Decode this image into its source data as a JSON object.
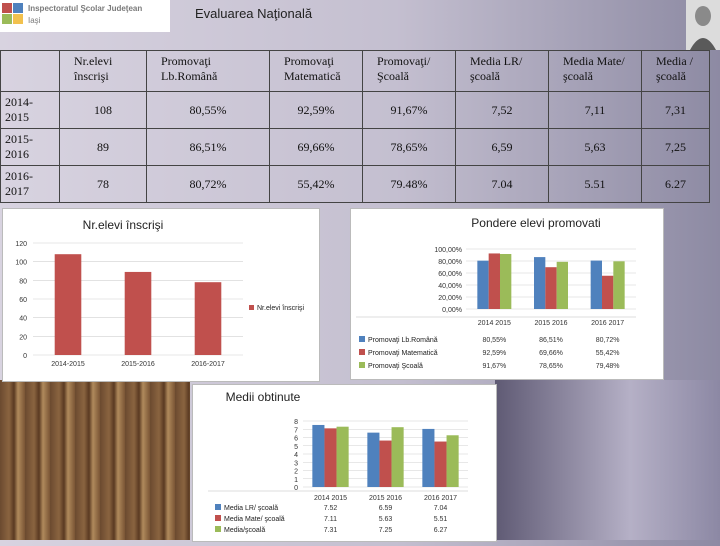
{
  "header": {
    "logo_line1": "Inspectoratul Şcolar Judeţean",
    "logo_line2": "Iaşi",
    "title": "Evaluarea Naţională"
  },
  "table": {
    "headers": [
      "",
      "Nr.elevi înscrişi",
      "Promovaţi Lb.Română",
      "Promovaţi Matematică",
      "Promovaţi/ Şcoală",
      "Media LR/ şcoală",
      "Media Mate/ şcoală",
      "Media /şcoală"
    ],
    "rows": [
      {
        "year": "2014-2015",
        "cells": [
          "108",
          "80,55%",
          "92,59%",
          "91,67%",
          "7,52",
          "7,11",
          "7,31"
        ]
      },
      {
        "year": "2015-2016",
        "cells": [
          "89",
          "86,51%",
          "69,66%",
          "78,65%",
          "6,59",
          "5,63",
          "7,25"
        ]
      },
      {
        "year": "2016-2017",
        "cells": [
          "78",
          "80,72%",
          "55,42%",
          "79.48%",
          "7.04",
          "5.51",
          "6.27"
        ]
      }
    ]
  },
  "colors": {
    "red": "#c0504d",
    "blue": "#4f81bd",
    "green": "#9bbb59"
  },
  "chart_data": [
    {
      "type": "bar",
      "title": "Nr.elevi înscrişi",
      "categories": [
        "2014-2015",
        "2015-2016",
        "2016-2017"
      ],
      "series": [
        {
          "name": "Nr.elevi înscrişi",
          "values": [
            108,
            89,
            78
          ]
        }
      ],
      "yticks": [
        "0",
        "20",
        "40",
        "60",
        "80",
        "100",
        "120"
      ],
      "ylim": [
        0,
        120
      ]
    },
    {
      "type": "bar",
      "title": "Pondere elevi promovati",
      "categories": [
        "2014 2015",
        "2015 2016",
        "2016 2017"
      ],
      "series": [
        {
          "name": "Promovaţi Lb.Română",
          "values": [
            80.55,
            86.51,
            80.72
          ],
          "labels": [
            "80,55%",
            "86,51%",
            "80,72%"
          ]
        },
        {
          "name": "Promovaţi Matematică",
          "values": [
            92.59,
            69.66,
            55.42
          ],
          "labels": [
            "92,59%",
            "69,66%",
            "55,42%"
          ]
        },
        {
          "name": "Promovaţi Şcoală",
          "values": [
            91.67,
            78.65,
            79.48
          ],
          "labels": [
            "91,67%",
            "78,65%",
            "79,48%"
          ]
        }
      ],
      "yticks": [
        "0,00%",
        "20,00%",
        "40,00%",
        "60,00%",
        "80,00%",
        "100,00%"
      ],
      "ylim": [
        0,
        100
      ]
    },
    {
      "type": "bar",
      "title": "Medii obtinute",
      "categories": [
        "2014 2015",
        "2015 2016",
        "2016 2017"
      ],
      "series": [
        {
          "name": "Media LR/ şcoală",
          "values": [
            7.52,
            6.59,
            7.04
          ],
          "labels": [
            "7.52",
            "6.59",
            "7.04"
          ]
        },
        {
          "name": "Media Mate/ şcoală",
          "values": [
            7.11,
            5.63,
            5.51
          ],
          "labels": [
            "7.11",
            "5.63",
            "5.51"
          ]
        },
        {
          "name": "Media/şcoală",
          "values": [
            7.31,
            7.25,
            6.27
          ],
          "labels": [
            "7.31",
            "7.25",
            "6.27"
          ]
        }
      ],
      "yticks": [
        "0",
        "1",
        "2",
        "3",
        "4",
        "5",
        "6",
        "7",
        "8"
      ],
      "ylim": [
        0,
        8
      ]
    }
  ]
}
